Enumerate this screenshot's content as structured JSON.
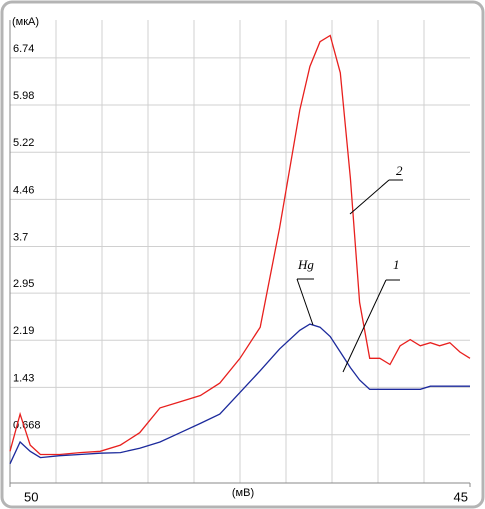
{
  "chart_data": {
    "type": "line",
    "y_label": "(мкА)",
    "x_label": "(мВ)",
    "xlim": [
      50,
      45
    ],
    "xticks": [
      50,
      45
    ],
    "ylim": [
      -0.11,
      7.35
    ],
    "yticks": [
      0.668,
      1.43,
      2.19,
      2.95,
      3.7,
      4.46,
      5.22,
      5.98,
      6.74
    ],
    "grid": true,
    "x": [
      50,
      49.89,
      49.78,
      49.67,
      49.46,
      49.24,
      49.02,
      48.8,
      48.59,
      48.37,
      48.15,
      47.93,
      47.72,
      47.5,
      47.28,
      47.07,
      46.85,
      46.74,
      46.63,
      46.52,
      46.41,
      46.3,
      46.2,
      46.09,
      45.98,
      45.87,
      45.76,
      45.65,
      45.54,
      45.43,
      45.33,
      45.22,
      45.11,
      45
    ],
    "series": [
      {
        "name": "2",
        "color": "#e8201e",
        "values": [
          0.4,
          1.0,
          0.5,
          0.35,
          0.35,
          0.38,
          0.4,
          0.5,
          0.7,
          1.1,
          1.2,
          1.3,
          1.5,
          1.9,
          2.4,
          4.0,
          5.9,
          6.6,
          7.0,
          7.1,
          6.5,
          4.8,
          2.8,
          1.9,
          1.9,
          1.8,
          2.1,
          2.2,
          2.1,
          2.15,
          2.1,
          2.15,
          2.0,
          1.9
        ]
      },
      {
        "name": "1",
        "color": "#1c2a9c",
        "values": [
          0.2,
          0.55,
          0.4,
          0.3,
          0.33,
          0.35,
          0.37,
          0.38,
          0.45,
          0.55,
          0.7,
          0.85,
          1.0,
          1.35,
          1.7,
          2.05,
          2.35,
          2.45,
          2.4,
          2.25,
          2.0,
          1.75,
          1.55,
          1.4,
          1.4,
          1.4,
          1.4,
          1.4,
          1.4,
          1.45,
          1.45,
          1.45,
          1.45,
          1.45
        ]
      }
    ],
    "annotations": [
      "Hg"
    ]
  }
}
